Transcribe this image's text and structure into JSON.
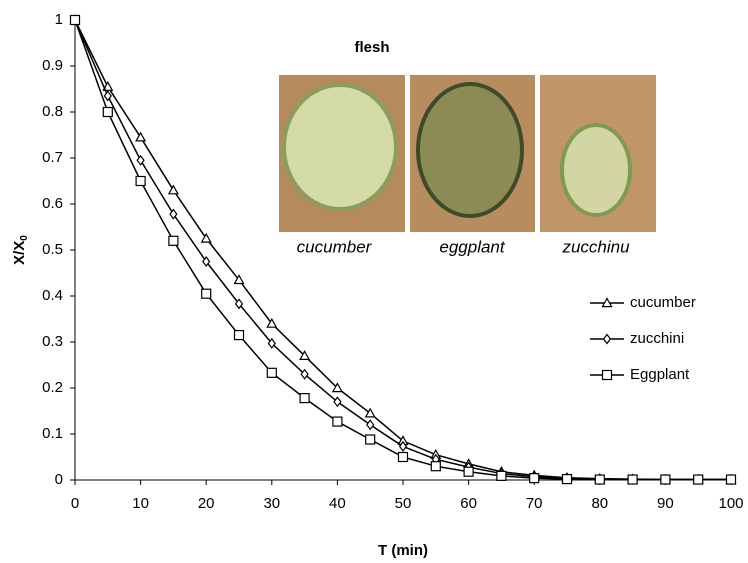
{
  "chart_data": {
    "type": "line",
    "x_label": "T (min)",
    "y_label": "X/X",
    "y_label_subscript": "0",
    "x": [
      0,
      5,
      10,
      15,
      20,
      25,
      30,
      35,
      40,
      45,
      50,
      55,
      60,
      65,
      70,
      75,
      80,
      85,
      90,
      95,
      100
    ],
    "series": [
      {
        "name": "cucumber",
        "color": "#000000",
        "marker": "triangle",
        "values": [
          1,
          0.855,
          0.745,
          0.63,
          0.525,
          0.435,
          0.34,
          0.27,
          0.2,
          0.145,
          0.085,
          0.055,
          0.035,
          0.018,
          0.01,
          0.005,
          0.003,
          0.002,
          0.001,
          0.001,
          0.001
        ]
      },
      {
        "name": "zucchini",
        "color": "#000000",
        "marker": "diamond",
        "values": [
          1,
          0.835,
          0.695,
          0.578,
          0.475,
          0.383,
          0.297,
          0.23,
          0.17,
          0.12,
          0.073,
          0.045,
          0.028,
          0.014,
          0.007,
          0.004,
          0.002,
          0.001,
          0.001,
          0.001,
          0.001
        ]
      },
      {
        "name": "Eggplant",
        "color": "#000000",
        "marker": "square",
        "values": [
          1,
          0.8,
          0.65,
          0.52,
          0.405,
          0.315,
          0.233,
          0.178,
          0.127,
          0.088,
          0.05,
          0.03,
          0.018,
          0.009,
          0.004,
          0.002,
          0.001,
          0.001,
          0.001,
          0.001,
          0.001
        ]
      }
    ],
    "xlim": [
      0,
      100
    ],
    "xticks": [
      0,
      10,
      20,
      30,
      40,
      50,
      60,
      70,
      80,
      90,
      100
    ],
    "ylim": [
      0,
      1
    ],
    "yticks": [
      0,
      0.1,
      0.2,
      0.3,
      0.4,
      0.5,
      0.6,
      0.7,
      0.8,
      0.9,
      1
    ],
    "grid": false,
    "legend": "right",
    "inset": {
      "title": "flesh",
      "labels": [
        "cucumber",
        "eggplant",
        "zucchinu"
      ]
    }
  }
}
